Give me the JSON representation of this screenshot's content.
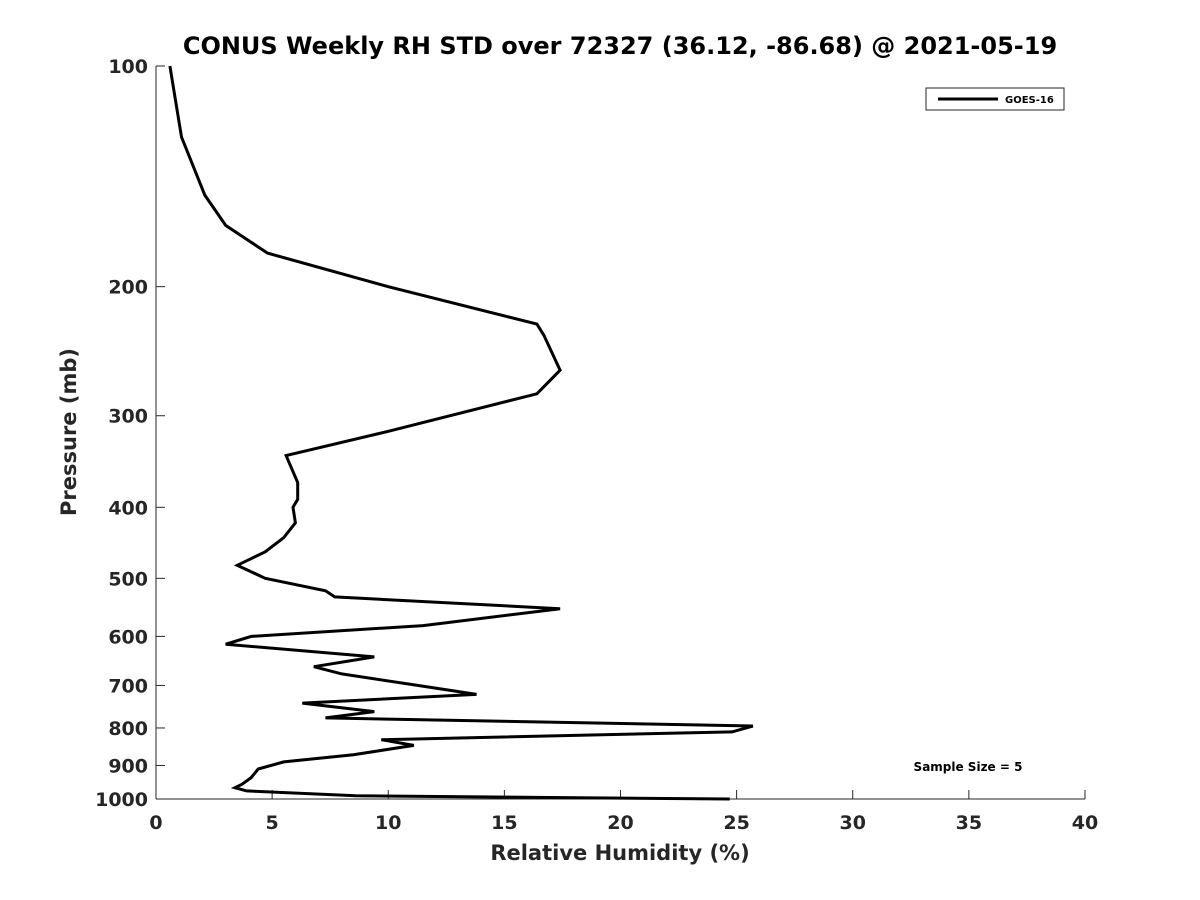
{
  "chart_data": {
    "type": "line",
    "title": "CONUS Weekly RH STD over 72327 (36.12, -86.68) @ 2021-05-19",
    "xlabel": "Relative Humidity (%)",
    "ylabel": "Pressure (mb)",
    "xlim": [
      0,
      40
    ],
    "ylim": [
      100,
      1000
    ],
    "yscale": "log",
    "x_ticks": [
      0,
      5,
      10,
      15,
      20,
      25,
      30,
      35,
      40
    ],
    "y_ticks": [
      100,
      200,
      300,
      400,
      500,
      600,
      700,
      800,
      900,
      1000
    ],
    "legend": {
      "position": "top-right",
      "entries": [
        "GOES-16"
      ]
    },
    "annotation": "Sample Size = 5",
    "series": [
      {
        "name": "GOES-16",
        "color": "#000000",
        "points": [
          [
            0.6,
            100
          ],
          [
            1.1,
            125
          ],
          [
            2.1,
            150
          ],
          [
            3.0,
            165
          ],
          [
            4.8,
            180
          ],
          [
            10.0,
            200
          ],
          [
            16.4,
            225
          ],
          [
            16.7,
            233
          ],
          [
            17.4,
            260
          ],
          [
            16.4,
            280
          ],
          [
            10.0,
            315
          ],
          [
            5.6,
            340
          ],
          [
            6.1,
            370
          ],
          [
            6.1,
            390
          ],
          [
            5.9,
            400
          ],
          [
            6.0,
            420
          ],
          [
            5.5,
            440
          ],
          [
            4.7,
            460
          ],
          [
            3.5,
            480
          ],
          [
            4.7,
            500
          ],
          [
            7.3,
            520
          ],
          [
            7.7,
            530
          ],
          [
            17.4,
            550
          ],
          [
            11.5,
            580
          ],
          [
            4.1,
            600
          ],
          [
            3.0,
            615
          ],
          [
            9.4,
            640
          ],
          [
            6.8,
            660
          ],
          [
            8.0,
            675
          ],
          [
            11.3,
            700
          ],
          [
            13.8,
            720
          ],
          [
            6.3,
            740
          ],
          [
            9.4,
            760
          ],
          [
            7.3,
            775
          ],
          [
            25.7,
            795
          ],
          [
            24.8,
            810
          ],
          [
            9.7,
            830
          ],
          [
            11.1,
            845
          ],
          [
            8.5,
            870
          ],
          [
            5.5,
            890
          ],
          [
            4.4,
            910
          ],
          [
            4.1,
            935
          ],
          [
            3.7,
            955
          ],
          [
            3.4,
            965
          ],
          [
            3.9,
            975
          ],
          [
            8.6,
            990
          ],
          [
            24.7,
            1000
          ]
        ]
      }
    ]
  }
}
